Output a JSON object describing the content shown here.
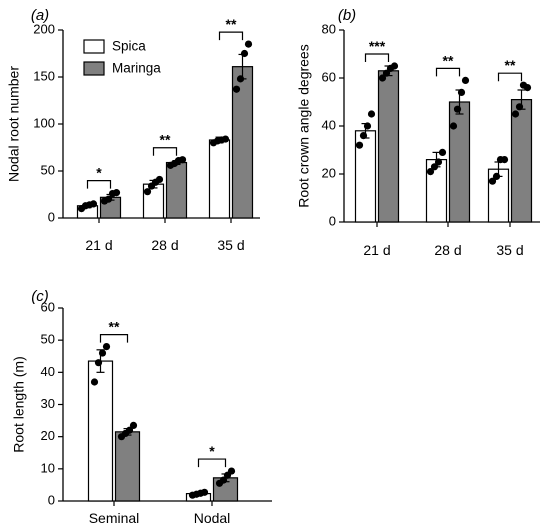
{
  "chart_data": [
    {
      "panel": "(a)",
      "type": "bar",
      "ylabel": "Nodal root number",
      "ylim": [
        0,
        200
      ],
      "yticks": [
        0,
        50,
        100,
        150,
        200
      ],
      "categories": [
        "21 d",
        "28 d",
        "35 d"
      ],
      "legend": {
        "position": "top-left",
        "entries": [
          "Spica",
          "Maringa"
        ]
      },
      "series": [
        {
          "name": "Spica",
          "color": "#ffffff",
          "values": [
            13,
            36,
            83
          ],
          "errors": [
            2,
            4,
            3
          ],
          "points": [
            [
              10,
              13,
              14,
              15
            ],
            [
              28,
              34,
              38,
              41
            ],
            [
              80,
              82,
              83,
              84
            ]
          ]
        },
        {
          "name": "Maringa",
          "color": "#808080",
          "values": [
            22,
            59,
            161
          ],
          "errors": [
            3,
            2,
            13
          ],
          "points": [
            [
              18,
              20,
              26,
              27
            ],
            [
              56,
              58,
              61,
              62
            ],
            [
              137,
              148,
              175,
              185
            ]
          ]
        }
      ],
      "significance": [
        "*",
        "**",
        "**"
      ]
    },
    {
      "panel": "(b)",
      "type": "bar",
      "ylabel": "Root crown angle degrees",
      "ylim": [
        0,
        80
      ],
      "yticks": [
        0,
        20,
        40,
        60,
        80
      ],
      "categories": [
        "21 d",
        "28 d",
        "35 d"
      ],
      "series": [
        {
          "name": "Spica",
          "color": "#ffffff",
          "values": [
            38,
            26,
            22
          ],
          "errors": [
            3,
            3,
            3
          ],
          "points": [
            [
              32,
              36,
              40,
              45
            ],
            [
              21,
              23,
              25,
              29
            ],
            [
              17,
              19,
              26,
              26
            ]
          ]
        },
        {
          "name": "Maringa",
          "color": "#808080",
          "values": [
            63,
            50,
            51
          ],
          "errors": [
            2,
            5,
            4
          ],
          "points": [
            [
              60,
              62,
              64,
              65
            ],
            [
              40,
              47,
              54,
              59
            ],
            [
              45,
              48,
              57,
              56
            ]
          ]
        }
      ],
      "significance": [
        "***",
        "**",
        "**"
      ]
    },
    {
      "panel": "(c)",
      "type": "bar",
      "ylabel": "Root length (m)",
      "ylim": [
        0,
        60
      ],
      "yticks": [
        0,
        10,
        20,
        30,
        40,
        50,
        60
      ],
      "categories": [
        "Seminal",
        "Nodal"
      ],
      "series": [
        {
          "name": "Spica",
          "color": "#ffffff",
          "values": [
            43.5,
            2.3
          ],
          "errors": [
            3.5,
            0.3
          ],
          "points": [
            [
              37,
              43,
              46,
              48
            ],
            [
              1.8,
              2.1,
              2.4,
              2.7
            ]
          ]
        },
        {
          "name": "Maringa",
          "color": "#808080",
          "values": [
            21.5,
            7.2
          ],
          "errors": [
            1.0,
            1.2
          ],
          "points": [
            [
              20,
              21,
              22,
              23.5
            ],
            [
              5.5,
              6.5,
              8,
              9.3
            ]
          ]
        }
      ],
      "significance": [
        "**",
        "*"
      ]
    }
  ]
}
